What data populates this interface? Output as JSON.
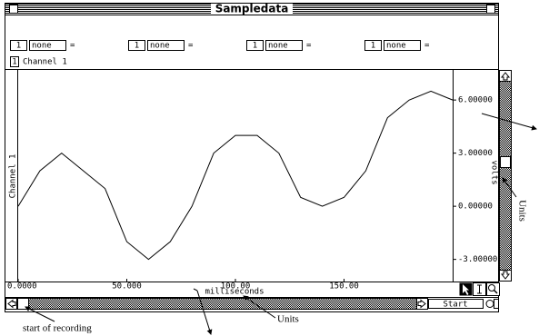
{
  "window": {
    "title": "Sampledata"
  },
  "controls": [
    {
      "channel": "1",
      "unit": "none",
      "sign": "="
    },
    {
      "channel": "1",
      "unit": "none",
      "sign": "="
    },
    {
      "channel": "1",
      "unit": "none",
      "sign": "="
    },
    {
      "channel": "1",
      "unit": "none",
      "sign": "="
    }
  ],
  "channel_select": {
    "number": "1",
    "label": "Channel 1"
  },
  "start_button": "Start",
  "annotations": {
    "start": "start of recording",
    "units_bottom": "Units",
    "units_right": "Units"
  },
  "chart_data": {
    "type": "line",
    "y_axis_side": "right",
    "channel_label": "Channel 1",
    "xlabel": "milliseconds",
    "ylabel": "volts",
    "color": "#000000",
    "grid": false,
    "x": [
      0,
      10,
      20,
      30,
      40,
      50,
      60,
      70,
      80,
      90,
      100,
      110,
      120,
      130,
      140,
      150,
      160,
      170,
      180,
      190,
      200
    ],
    "values": [
      0,
      2,
      3,
      2,
      1,
      -2,
      -3,
      -2,
      0,
      3,
      4,
      4,
      3,
      0.5,
      0,
      0.5,
      2,
      5,
      6,
      6.5,
      6
    ],
    "xlim": [
      0,
      200
    ],
    "ylim": [
      -4.25,
      7.7
    ],
    "xticks": [
      {
        "value": 0,
        "label": "0.0000"
      },
      {
        "value": 50,
        "label": "50.000"
      },
      {
        "value": 100,
        "label": "100.00"
      },
      {
        "value": 150,
        "label": "150.00"
      }
    ],
    "yticks": [
      {
        "value": 6,
        "label": "6.00000"
      },
      {
        "value": 3,
        "label": "3.00000"
      },
      {
        "value": 0,
        "label": "0.00000"
      },
      {
        "value": -3,
        "label": "-3.00000"
      }
    ]
  }
}
